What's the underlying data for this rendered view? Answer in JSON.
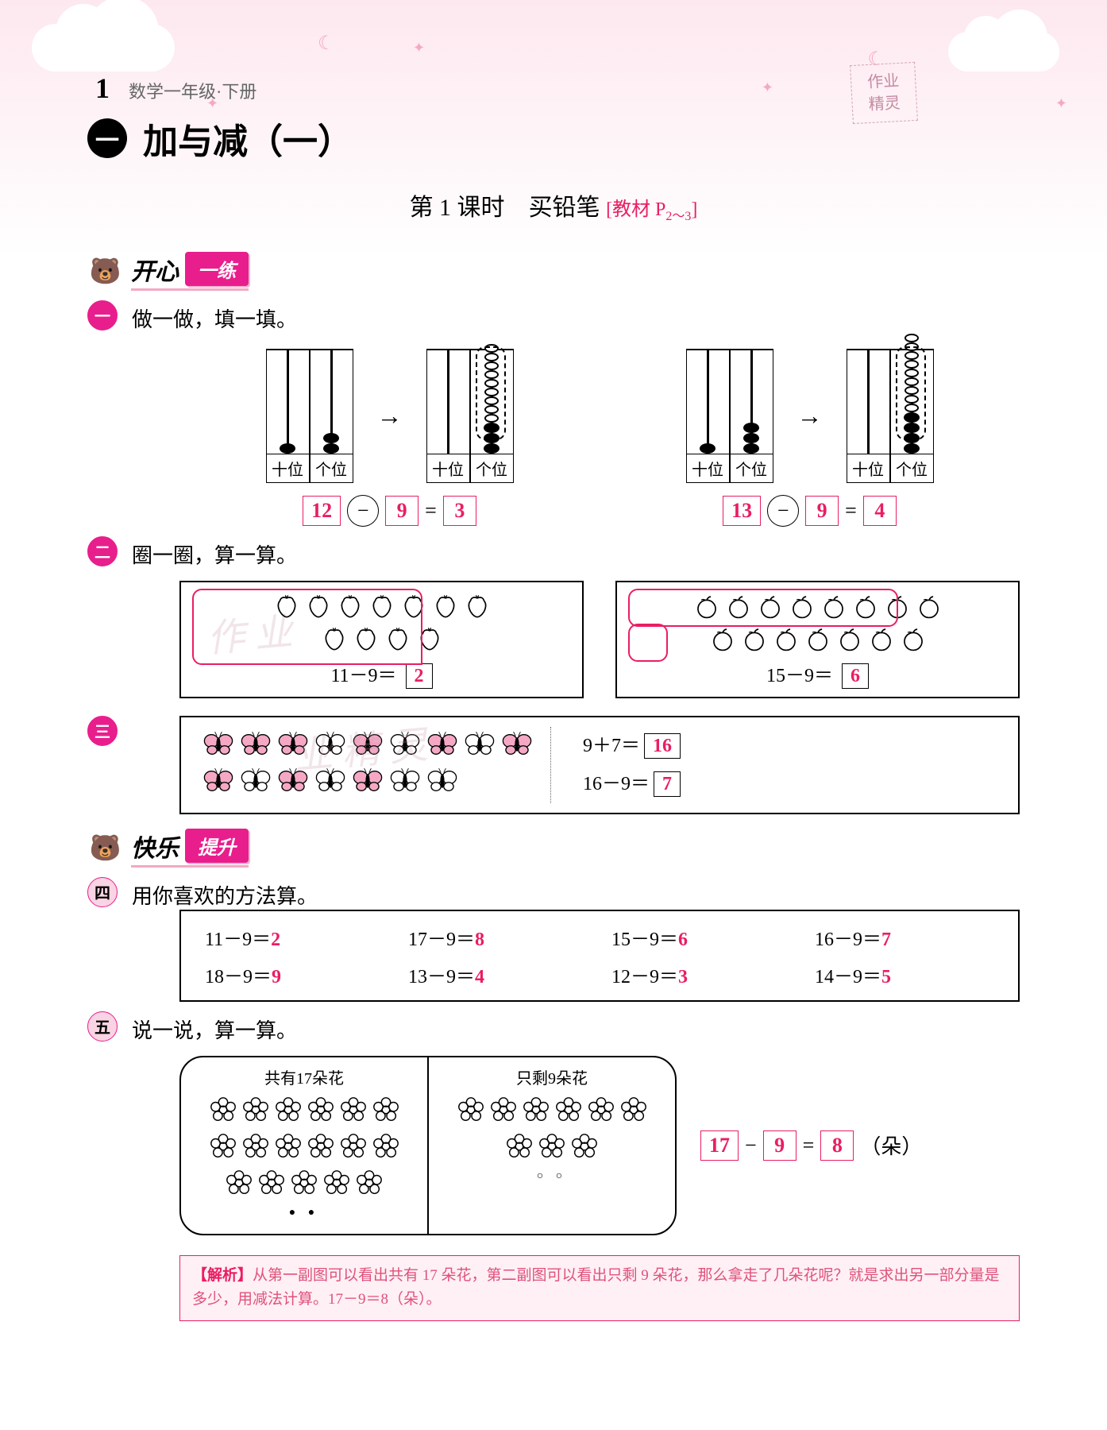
{
  "header": {
    "chapter_num": "1",
    "subtitle": "数学一年级·下册",
    "chapter_icon": "一",
    "chapter_title": "加与减（一）",
    "watermark_l1": "作业",
    "watermark_l2": "精灵"
  },
  "lesson": {
    "prefix": "第 1 课时",
    "name": "买铅笔",
    "ref_label": "[教材 P",
    "ref_pages": "2～3",
    "ref_close": "]"
  },
  "section1": {
    "title": "开心",
    "badge": "一练"
  },
  "section2": {
    "title": "快乐",
    "badge": "提升"
  },
  "p1": {
    "badge": "一",
    "text": "做一做，填一填。",
    "tens": "十位",
    "ones": "个位",
    "eq1": {
      "a": "12",
      "op": "−",
      "b": "9",
      "eq": "=",
      "ans": "3"
    },
    "eq2": {
      "a": "13",
      "op": "−",
      "b": "9",
      "eq": "=",
      "ans": "4"
    }
  },
  "p2": {
    "badge": "二",
    "text": "圈一圈，算一算。",
    "eq1": {
      "lhs": "11－9＝",
      "ans": "2"
    },
    "eq2": {
      "lhs": "15－9＝",
      "ans": "6"
    }
  },
  "p3": {
    "badge": "三",
    "eq1": {
      "lhs": "9＋7＝",
      "ans": "16"
    },
    "eq2": {
      "lhs": "16－9＝",
      "ans": "7"
    },
    "pink_count": 9,
    "white_count": 7
  },
  "p4": {
    "badge": "四",
    "text": "用你喜欢的方法算。",
    "items": [
      {
        "q": "11－9＝",
        "a": "2"
      },
      {
        "q": "17－9＝",
        "a": "8"
      },
      {
        "q": "15－9＝",
        "a": "6"
      },
      {
        "q": "16－9＝",
        "a": "7"
      },
      {
        "q": "18－9＝",
        "a": "9"
      },
      {
        "q": "13－9＝",
        "a": "4"
      },
      {
        "q": "12－9＝",
        "a": "3"
      },
      {
        "q": "14－9＝",
        "a": "5"
      }
    ]
  },
  "p5": {
    "badge": "五",
    "text": "说一说，算一算。",
    "panel1": "共有17朵花",
    "panel2": "只剩9朵花",
    "flowers1": 17,
    "flowers2": 9,
    "eq": {
      "a": "17",
      "op": "−",
      "b": "9",
      "eq": "=",
      "ans": "8",
      "unit": "（朵）"
    }
  },
  "analysis": {
    "label": "【解析】",
    "text": "从第一副图可以看出共有 17 朵花，第二副图可以看出只剩 9 朵花，那么拿走了几朵花呢？就是求出另一部分量是多少，用减法计算。17－9＝8（朵）。"
  },
  "colors": {
    "pink": "#e91e63",
    "pink_bg": "#fef0f5",
    "badge_bg": "#f9d4e3",
    "magenta": "#e91e8d"
  }
}
